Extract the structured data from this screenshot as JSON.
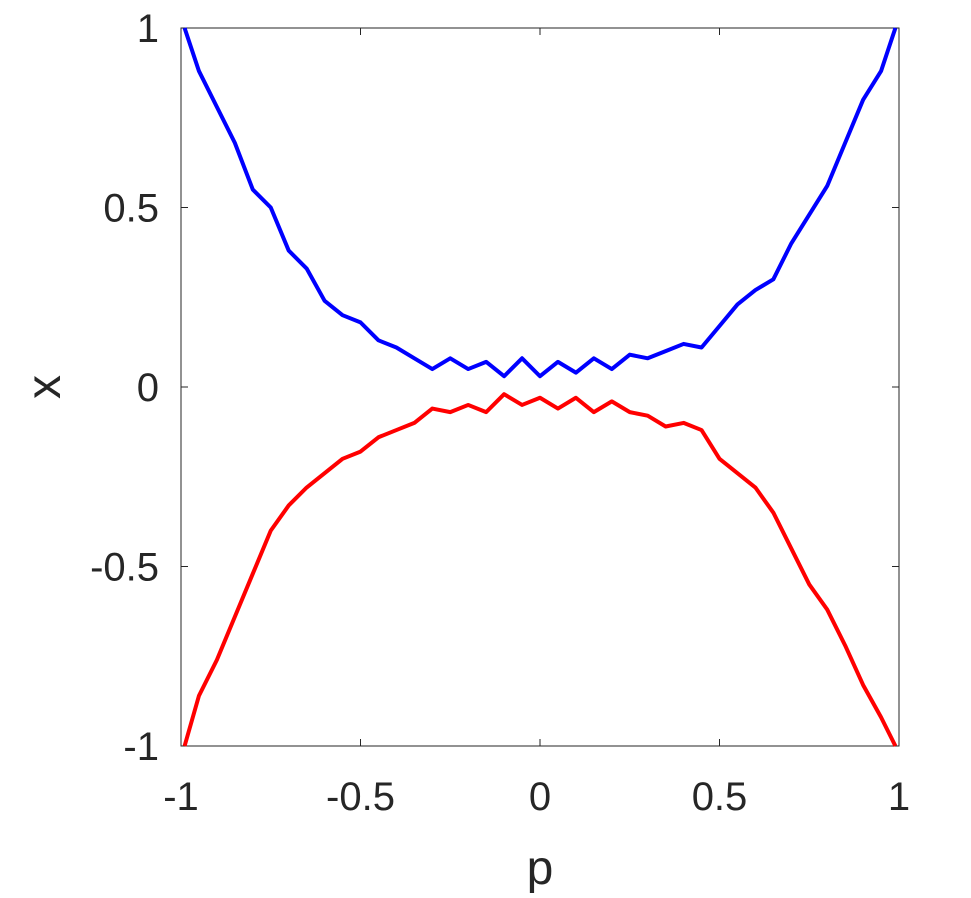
{
  "chart_data": {
    "type": "line",
    "xlabel": "p",
    "ylabel": "x",
    "x": [
      -0.99,
      -0.95,
      -0.9,
      -0.85,
      -0.8,
      -0.75,
      -0.7,
      -0.65,
      -0.6,
      -0.55,
      -0.5,
      -0.45,
      -0.4,
      -0.35,
      -0.3,
      -0.25,
      -0.2,
      -0.15,
      -0.1,
      -0.05,
      0,
      0.05,
      0.1,
      0.15,
      0.2,
      0.25,
      0.3,
      0.35,
      0.4,
      0.45,
      0.5,
      0.55,
      0.6,
      0.65,
      0.7,
      0.75,
      0.8,
      0.85,
      0.9,
      0.95,
      0.99
    ],
    "series": [
      {
        "color": "#0000ff",
        "values": [
          1.0,
          0.88,
          0.78,
          0.68,
          0.55,
          0.5,
          0.38,
          0.33,
          0.24,
          0.2,
          0.18,
          0.13,
          0.11,
          0.08,
          0.05,
          0.08,
          0.05,
          0.07,
          0.03,
          0.08,
          0.03,
          0.07,
          0.04,
          0.08,
          0.05,
          0.09,
          0.08,
          0.1,
          0.12,
          0.11,
          0.17,
          0.23,
          0.27,
          0.3,
          0.4,
          0.48,
          0.56,
          0.68,
          0.8,
          0.88,
          1.0
        ]
      },
      {
        "color": "#ff0000",
        "values": [
          -1.0,
          -0.86,
          -0.76,
          -0.64,
          -0.52,
          -0.4,
          -0.33,
          -0.28,
          -0.24,
          -0.2,
          -0.18,
          -0.14,
          -0.12,
          -0.1,
          -0.06,
          -0.07,
          -0.05,
          -0.07,
          -0.02,
          -0.05,
          -0.03,
          -0.06,
          -0.03,
          -0.07,
          -0.04,
          -0.07,
          -0.08,
          -0.11,
          -0.1,
          -0.12,
          -0.2,
          -0.24,
          -0.28,
          -0.35,
          -0.45,
          -0.55,
          -0.62,
          -0.72,
          -0.83,
          -0.92,
          -1.0
        ]
      }
    ],
    "xlim": [
      -1,
      1
    ],
    "ylim": [
      -1,
      1
    ],
    "xticks": [
      -1,
      -0.5,
      0,
      0.5,
      1
    ],
    "yticks": [
      -1,
      -0.5,
      0,
      0.5,
      1
    ]
  }
}
